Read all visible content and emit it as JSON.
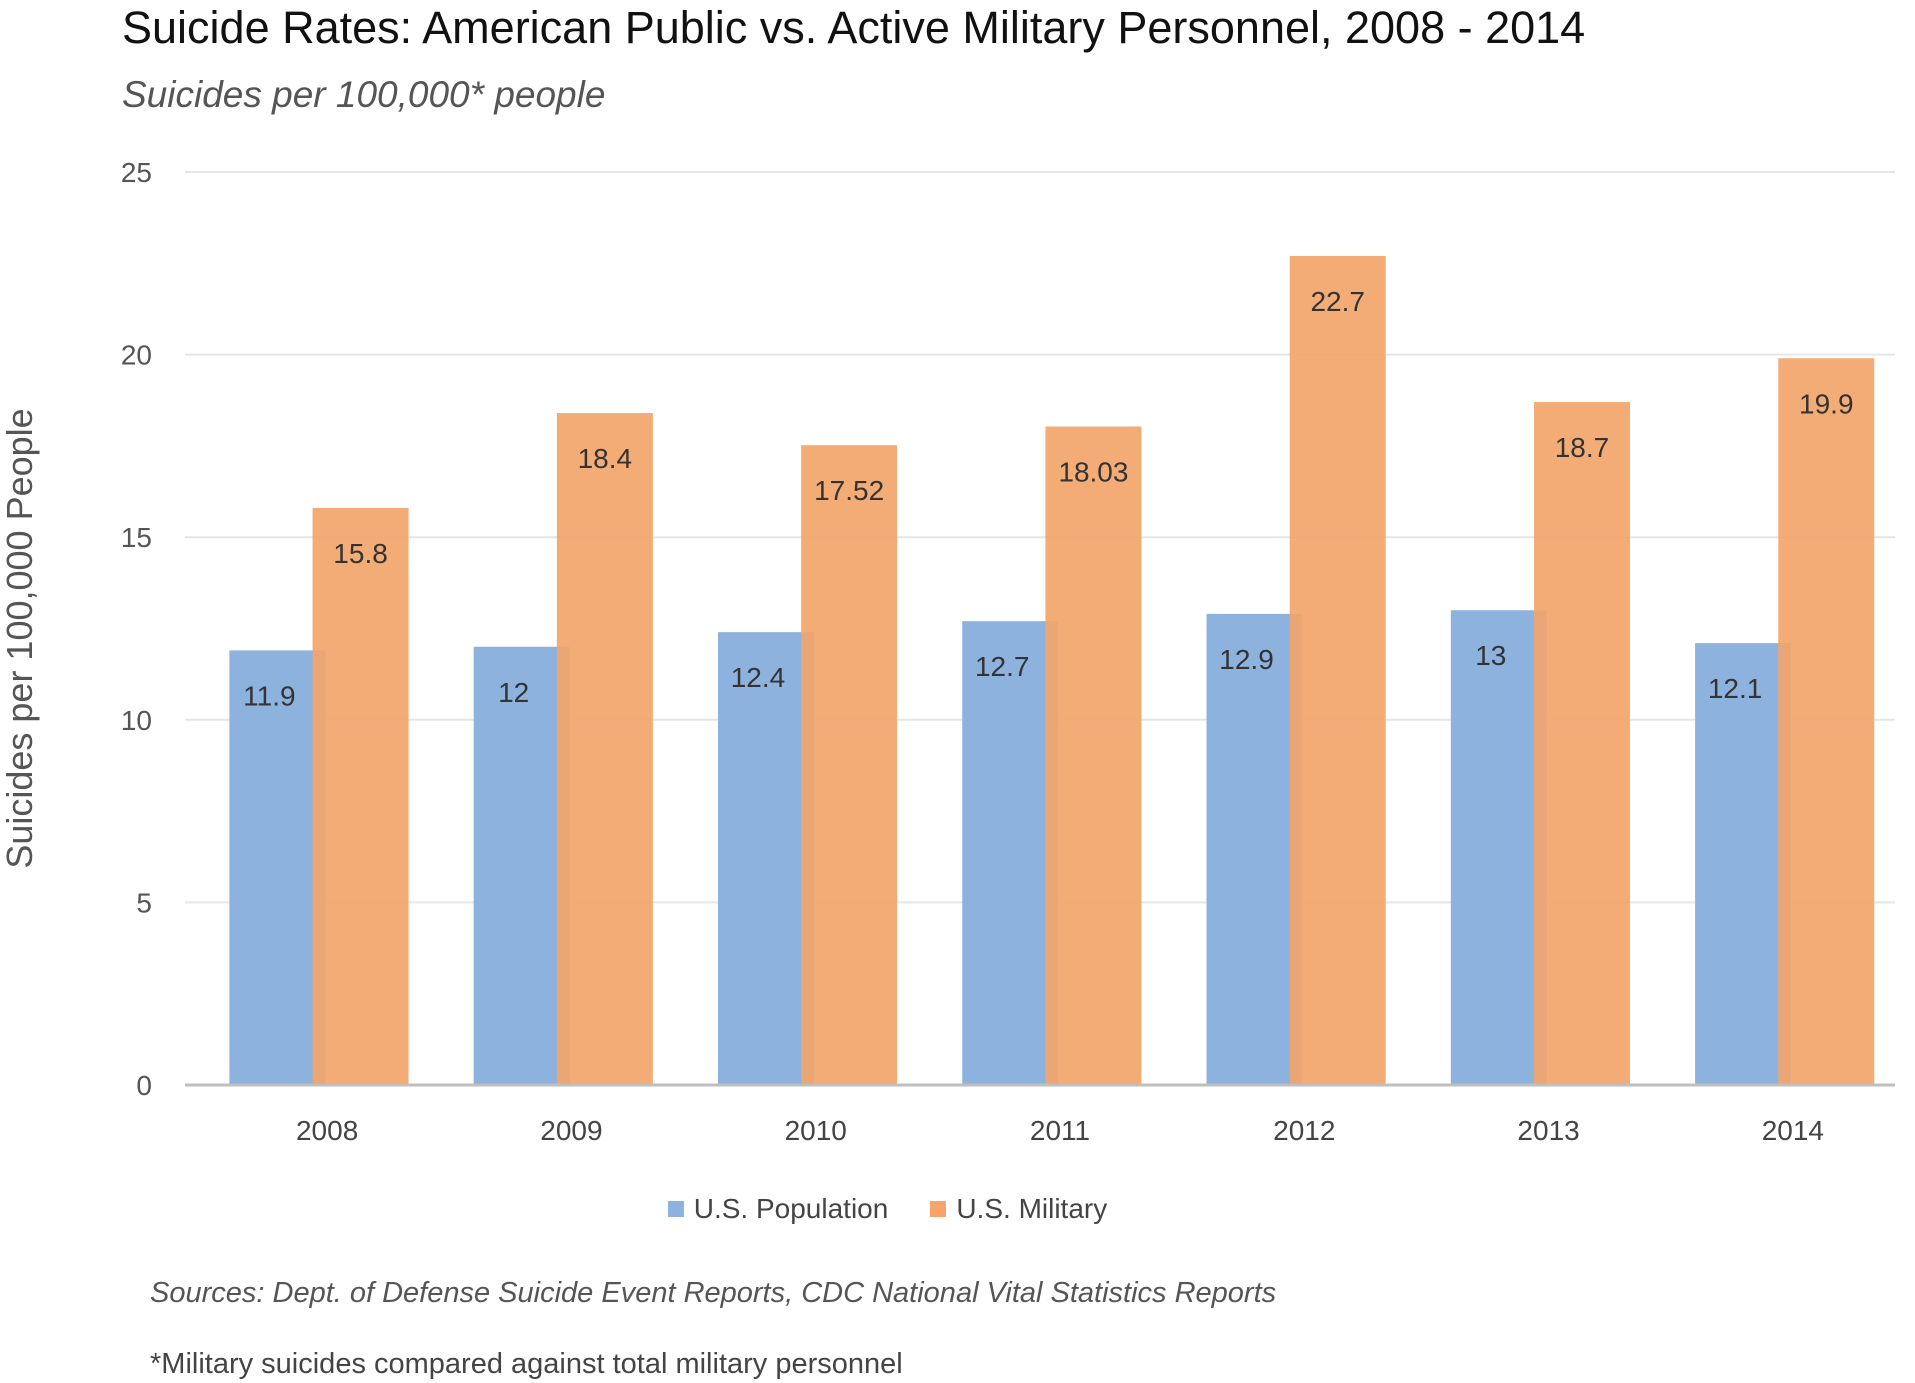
{
  "chart_data": {
    "type": "bar",
    "title": "Suicide Rates: American Public vs. Active Military Personnel, 2008 - 2014",
    "subtitle": "Suicides per 100,000* people",
    "xlabel": "",
    "ylabel": "Suicides per 100,000 People",
    "categories": [
      "2008",
      "2009",
      "2010",
      "2011",
      "2012",
      "2013",
      "2014"
    ],
    "series": [
      {
        "name": "U.S. Population",
        "color": "#8db2de",
        "values": [
          11.9,
          12,
          12.4,
          12.7,
          12.9,
          13,
          12.1
        ],
        "labels": [
          "11.9",
          "12",
          "12.4",
          "12.7",
          "12.9",
          "13",
          "12.1"
        ]
      },
      {
        "name": "U.S. Military",
        "color": "#f3a56b",
        "values": [
          15.8,
          18.4,
          17.52,
          18.03,
          22.7,
          18.7,
          19.9
        ],
        "labels": [
          "15.8",
          "18.4",
          "17.52",
          "18.03",
          "22.7",
          "18.7",
          "19.9"
        ]
      }
    ],
    "ylim": [
      0,
      25
    ],
    "yticks": [
      "0",
      "5",
      "10",
      "15",
      "20",
      "25"
    ],
    "grid": true,
    "legend_position": "bottom"
  },
  "sources": "Sources: Dept. of Defense Suicide Event Reports, CDC National Vital Statistics Reports",
  "footnote": "*Military suicides compared against total military personnel"
}
